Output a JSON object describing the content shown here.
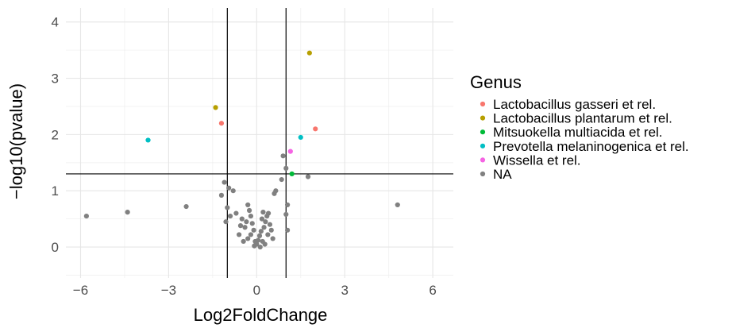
{
  "chart_data": {
    "type": "scatter",
    "xlabel": "Log2FoldChange",
    "ylabel": "−log10(pvalue)",
    "xlim": [
      -6.5,
      6.7
    ],
    "ylim": [
      -0.55,
      4.25
    ],
    "x_ticks": [
      -6,
      -3,
      0,
      3,
      6
    ],
    "x_tick_labels": [
      "−6",
      "−3",
      "0",
      "3",
      "6"
    ],
    "y_ticks": [
      0,
      1,
      2,
      3,
      4
    ],
    "y_tick_labels": [
      "0",
      "1",
      "2",
      "3",
      "4"
    ],
    "grid": true,
    "reference_lines": {
      "vertical": [
        -1,
        1
      ],
      "horizontal": [
        1.3
      ]
    },
    "legend": {
      "title": "Genus",
      "position": "right"
    },
    "series": [
      {
        "name": "Lactobacillus gasseri et rel.",
        "color": "#F8766D",
        "points": [
          [
            -1.2,
            2.2
          ],
          [
            2.0,
            2.1
          ]
        ]
      },
      {
        "name": "Lactobacillus plantarum et rel.",
        "color": "#B79F00",
        "points": [
          [
            -1.4,
            2.48
          ],
          [
            1.8,
            3.45
          ]
        ]
      },
      {
        "name": "Mitsuokella multiacida et rel.",
        "color": "#00BA38",
        "points": [
          [
            1.2,
            1.3
          ]
        ]
      },
      {
        "name": "Prevotella melaninogenica et rel.",
        "color": "#00BFC4",
        "points": [
          [
            -3.7,
            1.9
          ],
          [
            1.5,
            1.95
          ]
        ]
      },
      {
        "name": "Wissella et rel.",
        "color": "#F564E3",
        "points": [
          [
            1.15,
            1.7
          ]
        ]
      },
      {
        "name": "NA",
        "color": "#808080",
        "points": [
          [
            -5.8,
            0.55
          ],
          [
            -4.4,
            0.62
          ],
          [
            -2.4,
            0.72
          ],
          [
            4.8,
            0.75
          ],
          [
            1.75,
            1.25
          ],
          [
            0.9,
            1.62
          ],
          [
            1.0,
            1.4
          ],
          [
            0.85,
            1.2
          ],
          [
            0.6,
            0.95
          ],
          [
            0.65,
            1.0
          ],
          [
            1.05,
            0.75
          ],
          [
            1.0,
            0.58
          ],
          [
            1.05,
            0.3
          ],
          [
            -1.1,
            1.15
          ],
          [
            -0.95,
            1.05
          ],
          [
            -0.8,
            1.0
          ],
          [
            -1.2,
            0.92
          ],
          [
            -1.0,
            0.7
          ],
          [
            -0.9,
            0.55
          ],
          [
            -1.05,
            0.45
          ],
          [
            -0.7,
            0.6
          ],
          [
            -0.5,
            0.5
          ],
          [
            -0.55,
            0.38
          ],
          [
            -0.3,
            0.75
          ],
          [
            -0.25,
            0.65
          ],
          [
            -0.2,
            0.55
          ],
          [
            -0.35,
            0.45
          ],
          [
            -0.4,
            0.35
          ],
          [
            -0.15,
            0.42
          ],
          [
            -0.1,
            0.3
          ],
          [
            -0.2,
            0.22
          ],
          [
            -0.3,
            0.15
          ],
          [
            -0.05,
            0.1
          ],
          [
            0.0,
            0.05
          ],
          [
            0.05,
            0.12
          ],
          [
            0.1,
            0.2
          ],
          [
            0.15,
            0.28
          ],
          [
            0.2,
            0.1
          ],
          [
            0.25,
            0.35
          ],
          [
            0.3,
            0.45
          ],
          [
            0.35,
            0.55
          ],
          [
            0.4,
            0.6
          ],
          [
            0.45,
            0.4
          ],
          [
            0.5,
            0.3
          ],
          [
            0.38,
            0.22
          ],
          [
            0.28,
            0.05
          ],
          [
            0.12,
            0.0
          ],
          [
            -0.08,
            0.02
          ],
          [
            0.18,
            0.5
          ],
          [
            0.22,
            0.62
          ],
          [
            0.55,
            0.15
          ],
          [
            -0.45,
            0.1
          ],
          [
            -0.6,
            0.22
          ]
        ]
      }
    ]
  }
}
